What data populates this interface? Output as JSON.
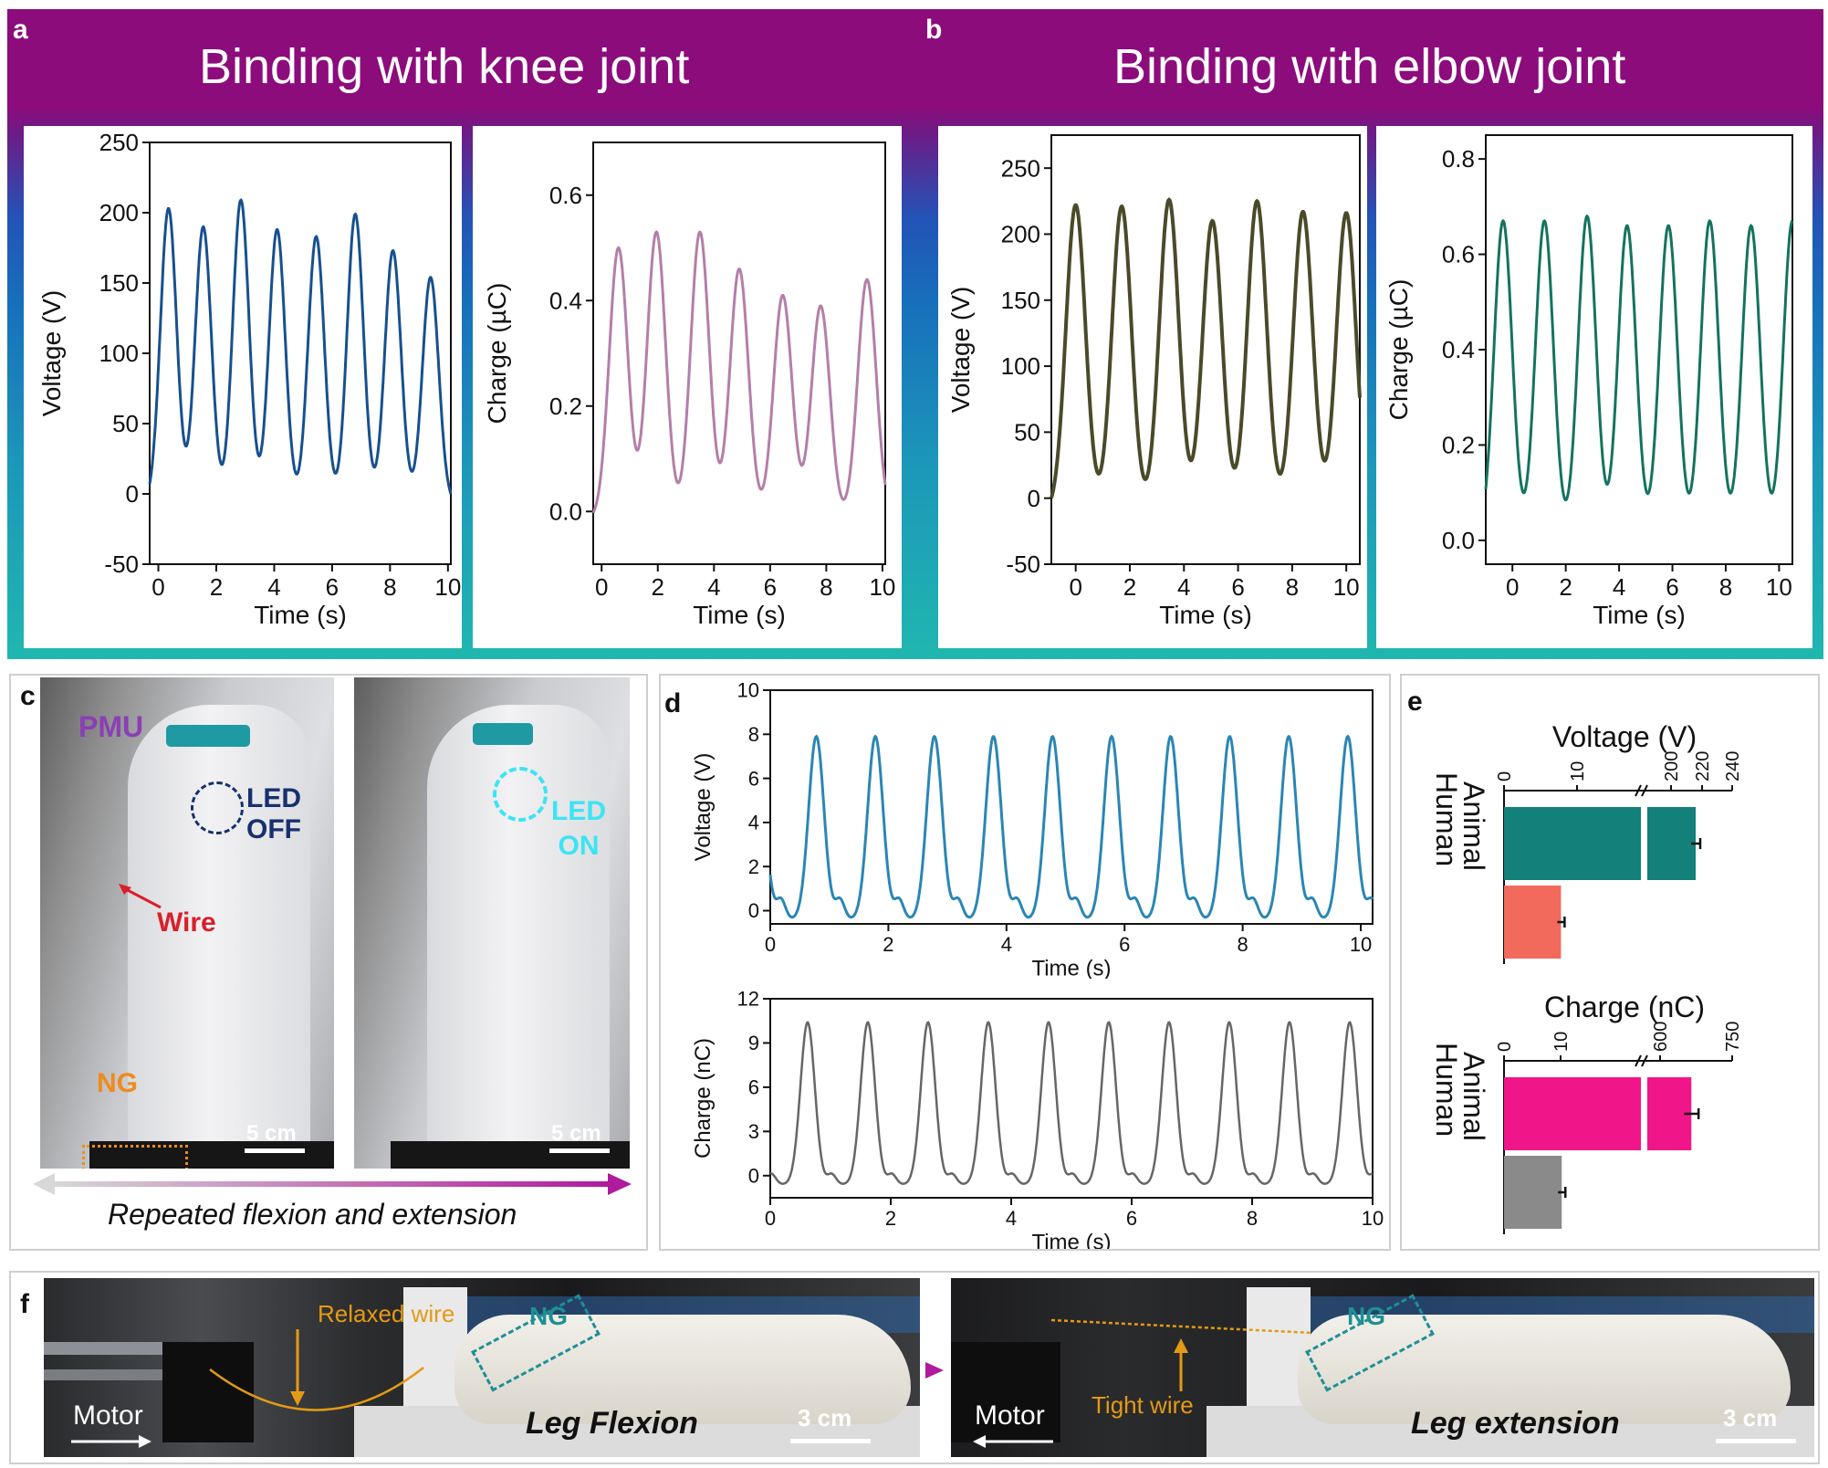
{
  "panels": {
    "a": {
      "label": "a",
      "title": "Binding with  knee joint"
    },
    "b": {
      "label": "b",
      "title": "Binding with elbow joint"
    },
    "c": {
      "label": "c",
      "pmu": "PMU",
      "led_off": [
        "LED",
        "OFF"
      ],
      "led_on": [
        "LED",
        "ON"
      ],
      "wire": "Wire",
      "ng": "NG",
      "scale_left": "5 cm",
      "scale_right": "5 cm",
      "caption": "Repeated flexion and extension"
    },
    "d": {
      "label": "d"
    },
    "e": {
      "label": "e"
    },
    "f": {
      "label": "f",
      "relaxed_wire": "Relaxed wire",
      "tight_wire": "Tight wire",
      "ng_left": "NG",
      "ng_right": "NG",
      "motor_left": "Motor",
      "motor_right": "Motor",
      "leg_flexion": "Leg Flexion",
      "leg_extension": "Leg extension",
      "scale_left": "3 cm",
      "scale_right": "3 cm"
    }
  },
  "colors": {
    "band_top": "#8c0c7c",
    "band_mid": "#176fbb",
    "band_bottom": "#20b7b0",
    "knee_voltage": "#17508f",
    "knee_charge": "#b37fa8",
    "elbow_voltage": "#4a4a2a",
    "elbow_charge": "#14735f",
    "d_voltage": "#2a86b4",
    "d_charge": "#666666",
    "e_human_voltage": "#138079",
    "e_animal_voltage": "#f26a5c",
    "e_human_charge": "#f0168a",
    "e_animal_charge": "#8a8a8a"
  },
  "chart_data": [
    {
      "id": "a-voltage",
      "type": "line",
      "xlabel": "Time (s)",
      "ylabel": "Voltage  (V)",
      "xlim": [
        -0.3,
        10.1
      ],
      "ylim": [
        -50,
        250
      ],
      "xticks": [
        0,
        2,
        4,
        6,
        8,
        10
      ],
      "yticks": [
        -50,
        0,
        50,
        100,
        150,
        200,
        250
      ],
      "period": 1.35,
      "peak_times": [
        0.35,
        1.55,
        2.85,
        4.1,
        5.45,
        6.8,
        8.1,
        9.4
      ],
      "peak_values": [
        203,
        190,
        209,
        188,
        183,
        199,
        173,
        154
      ],
      "baseline": -7
    },
    {
      "id": "a-charge",
      "type": "line",
      "xlabel": "Time (s)",
      "ylabel": "Charge (µC)",
      "xlim": [
        -0.3,
        10.1
      ],
      "ylim": [
        -0.1,
        0.7
      ],
      "xticks": [
        0,
        2,
        4,
        6,
        8,
        10
      ],
      "yticks": [
        0.0,
        0.2,
        0.4,
        0.6
      ],
      "peak_times": [
        0.6,
        1.95,
        3.5,
        4.9,
        6.45,
        7.8,
        9.45
      ],
      "peak_values": [
        0.5,
        0.53,
        0.53,
        0.46,
        0.41,
        0.39,
        0.44
      ],
      "baseline": -0.015
    },
    {
      "id": "b-voltage",
      "type": "line",
      "xlabel": "Time (s)",
      "ylabel": "Voltage  (V)",
      "xlim": [
        -0.9,
        10.5
      ],
      "ylim": [
        -50,
        275
      ],
      "xticks": [
        0,
        2,
        4,
        6,
        8,
        10
      ],
      "yticks": [
        -50,
        0,
        50,
        100,
        150,
        200,
        250
      ],
      "peak_times": [
        0.0,
        1.7,
        3.45,
        5.05,
        6.7,
        8.4,
        10.0
      ],
      "peak_values": [
        222,
        221,
        226,
        210,
        225,
        217,
        216
      ],
      "baseline": -10
    },
    {
      "id": "b-charge",
      "type": "line",
      "xlabel": "Time (s)",
      "ylabel": "Charge (µC)",
      "xlim": [
        -1.0,
        10.5
      ],
      "ylim": [
        -0.05,
        0.85
      ],
      "xticks": [
        0,
        2,
        4,
        6,
        8,
        10
      ],
      "yticks": [
        0.0,
        0.2,
        0.4,
        0.6,
        0.8
      ],
      "peak_times": [
        -0.35,
        1.2,
        2.8,
        4.3,
        5.85,
        7.4,
        8.95,
        10.5
      ],
      "peak_values": [
        0.67,
        0.67,
        0.68,
        0.66,
        0.66,
        0.67,
        0.66,
        0.67
      ],
      "baseline": 0.0
    },
    {
      "id": "d-voltage",
      "type": "line",
      "xlabel": "Time (s)",
      "ylabel": "Voltage  (V)",
      "xlim": [
        0,
        10.2
      ],
      "ylim": [
        -0.6,
        10
      ],
      "xticks": [
        0,
        2,
        4,
        6,
        8,
        10
      ],
      "yticks": [
        0,
        2,
        4,
        6,
        8,
        10
      ],
      "period": 1.0,
      "first_peak": 0.78,
      "peak_value": 7.9,
      "baseline": -0.4
    },
    {
      "id": "d-charge",
      "type": "line",
      "xlabel": "Time (s)",
      "ylabel": "Charge (nC)",
      "xlim": [
        0,
        10
      ],
      "ylim": [
        -1.5,
        12
      ],
      "xticks": [
        0,
        2,
        4,
        6,
        8,
        10
      ],
      "yticks": [
        0,
        3,
        6,
        9,
        12
      ],
      "period": 1.0,
      "first_peak": 0.62,
      "peak_value": 10.4,
      "baseline": -0.6
    },
    {
      "id": "e-voltage",
      "type": "bar",
      "orientation": "horizontal",
      "title": "Voltage (V)",
      "categories": [
        "Human",
        "Animal"
      ],
      "values": [
        216,
        7.8
      ],
      "errors": [
        3,
        0.3
      ],
      "axis_ticks": [
        "0",
        "10",
        "200",
        "220",
        "240"
      ],
      "axis_break": true
    },
    {
      "id": "e-charge",
      "type": "bar",
      "orientation": "horizontal",
      "title": "Charge (nC)",
      "categories": [
        "Human",
        "Animal"
      ],
      "values": [
        665,
        10.2
      ],
      "errors": [
        15,
        0.3
      ],
      "axis_ticks": [
        "0",
        "10",
        "600",
        "750"
      ],
      "axis_break": true
    }
  ]
}
